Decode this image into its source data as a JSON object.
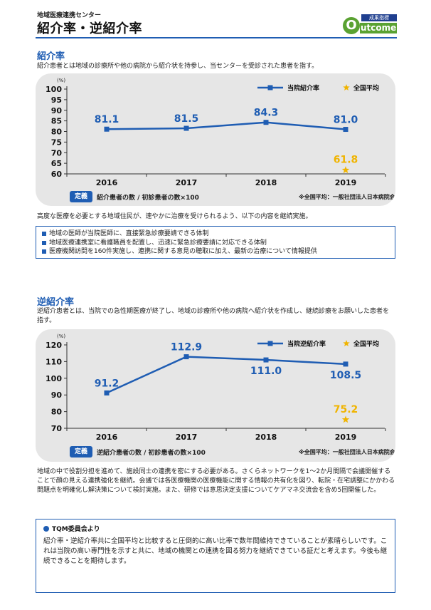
{
  "header": {
    "subtitle": "地域医療連携センター",
    "title": "紹介率・逆紹介率",
    "logo": {
      "top": "成果指標",
      "o": "O",
      "word": "utcome"
    }
  },
  "colors": {
    "accent": "#1f5db3",
    "star": "#f0b400",
    "logo_green": "#5aa232",
    "panel": "#e6e6e6"
  },
  "section1": {
    "title": "紹介率",
    "desc": "紹介患者とは地域の診療所や他の病院から紹介状を持参し、当センターを受診された患者を指す。",
    "definition_badge": "定義",
    "definition": "紹介患者の数 / 初診患者の数×100",
    "note": "※全国平均：一般社団法人日本病院会QI",
    "after": "高度な医療を必要とする地域住民が、速やかに治療を受けられるよう、以下の内容を継続実施。",
    "bullets": [
      "地域の医師が当院医師に、直接緊急診療要請できる体制",
      "地域医療連携室に看護職員を配置し、迅速に緊急診療要請に対応できる体制",
      "医療機関訪問を160件実施し、連携に関する意見の聴取に加え、最新の治療について情報提供"
    ]
  },
  "section2": {
    "title": "逆紹介率",
    "desc": "逆紹介患者とは、当院での急性期医療が終了し、地域の診療所や他の病院へ紹介状を作成し、継続診療をお願いした患者を指す。",
    "definition_badge": "定義",
    "definition": "逆紹介患者の数 / 初診患者の数×100",
    "note": "※全国平均：一般社団法人日本病院会QI",
    "after": "地域の中で役割分担を進めて、施設同士の連携を密にする必要がある。さくらネットワークを1～2か月間隔で会議開催することで顔の見える連携強化を継続。会議では各医療機関の医療機能に関する情報の共有化を図り、転院・在宅調整にかかわる問題点を明確化し解決策について検討実施。また、研修では意思決定支援についてケアマネ交流会を含め5回開催した。"
  },
  "tqm": {
    "title": "TQM委員会より",
    "body": "紹介率・逆紹介率共に全国平均と比較すると圧倒的に高い比率で数年間維持できていることが素晴らしいです。これは当院の高い専門性を示すと共に、地域の機関との連携を図る努力を継続できている証だと考えます。今後も継続できることを期待します。"
  },
  "chart_data": [
    {
      "type": "line",
      "unit": "(%)",
      "categories": [
        "2016",
        "2017",
        "2018",
        "2019"
      ],
      "series": [
        {
          "name": "当院紹介率",
          "values": [
            81.1,
            81.5,
            84.3,
            81.0
          ],
          "labels": [
            "81.1",
            "81.5",
            "84.3",
            "81.0"
          ]
        }
      ],
      "national_average": {
        "name": "全国平均",
        "category": "2019",
        "value": 61.8,
        "label": "61.8"
      },
      "ylim": [
        60,
        100
      ],
      "yticks": [
        60,
        65,
        70,
        75,
        80,
        85,
        90,
        95,
        100
      ],
      "grid": false,
      "legend": "top-right"
    },
    {
      "type": "line",
      "unit": "(%)",
      "categories": [
        "2016",
        "2017",
        "2018",
        "2019"
      ],
      "series": [
        {
          "name": "当院逆紹介率",
          "values": [
            91.2,
            112.9,
            111.0,
            108.5
          ],
          "labels": [
            "91.2",
            "112.9",
            "111.0",
            "108.5"
          ]
        }
      ],
      "national_average": {
        "name": "全国平均",
        "category": "2019",
        "value": 75.2,
        "label": "75.2"
      },
      "ylim": [
        70,
        120
      ],
      "yticks": [
        70,
        80,
        90,
        100,
        110,
        120
      ],
      "grid": false,
      "legend": "top-right"
    }
  ]
}
